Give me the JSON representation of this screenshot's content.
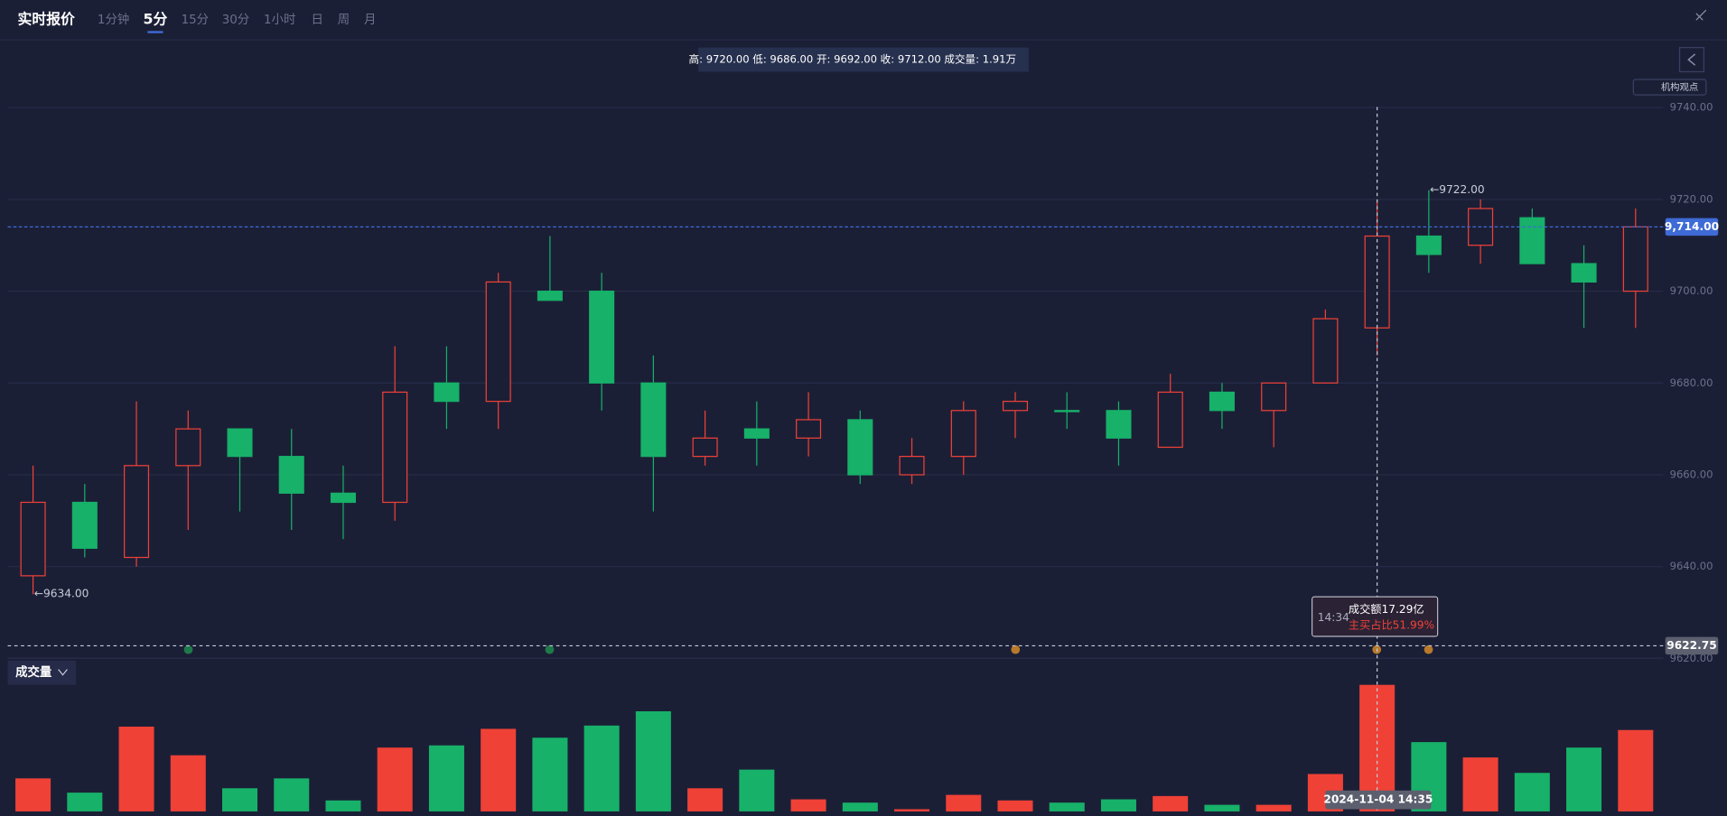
{
  "header": {
    "title": "实时报价",
    "tabs": [
      "1分钟",
      "5分",
      "15分",
      "30分",
      "1小时",
      "日",
      "周",
      "月"
    ],
    "active_tab": 1
  },
  "info_bar": "高: 9720.00 低: 9686.00 开: 9692.00 收: 9712.00 成交量: 1.91万",
  "badge": "机构观点",
  "volume_selector": "成交量",
  "chart_data": {
    "type": "candlestick",
    "open": [
      9638,
      9654,
      9642,
      9662,
      9670,
      9664,
      9656,
      9654,
      9680,
      9676,
      9700,
      9700,
      9680,
      9664,
      9670,
      9668,
      9672,
      9660,
      9664,
      9674,
      9674,
      9674,
      9666,
      9678,
      9674,
      9680,
      9692,
      9712,
      9710,
      9716,
      9706,
      9700
    ],
    "high": [
      9662,
      9658,
      9676,
      9674,
      9670,
      9670,
      9662,
      9688,
      9688,
      9704,
      9712,
      9704,
      9686,
      9674,
      9676,
      9678,
      9674,
      9668,
      9676,
      9678,
      9678,
      9676,
      9682,
      9680,
      9680,
      9696,
      9720,
      9722,
      9720,
      9718,
      9710,
      9718
    ],
    "low": [
      9634,
      9642,
      9640,
      9648,
      9652,
      9648,
      9646,
      9650,
      9670,
      9670,
      9698,
      9674,
      9652,
      9662,
      9662,
      9664,
      9658,
      9658,
      9660,
      9668,
      9670,
      9662,
      9666,
      9670,
      9666,
      9680,
      9686,
      9704,
      9706,
      9706,
      9692,
      9692
    ],
    "close": [
      9654,
      9644,
      9662,
      9670,
      9664,
      9656,
      9654,
      9678,
      9676,
      9702,
      9698,
      9680,
      9664,
      9668,
      9668,
      9672,
      9660,
      9664,
      9674,
      9676,
      9674,
      9668,
      9678,
      9674,
      9680,
      9694,
      9712,
      9708,
      9718,
      9706,
      9702,
      9714
    ],
    "up_color": "#ef4136",
    "down_color": "#17b169",
    "ylim": [
      9620,
      9749
    ],
    "yticks": [
      {
        "value": 9740,
        "label": "9740.00"
      },
      {
        "value": 9720,
        "label": "9720.00"
      },
      {
        "value": 9700,
        "label": "9700.00"
      },
      {
        "value": 9680,
        "label": "9680.00"
      },
      {
        "value": 9660,
        "label": "9660.00"
      },
      {
        "value": 9640,
        "label": "9640.00"
      },
      {
        "value": 9620,
        "label": "9620.00"
      }
    ],
    "grid": true,
    "annotations": [
      {
        "index": 27,
        "text": "←9722.00"
      },
      {
        "index": 0,
        "text": "←9634.00"
      }
    ],
    "last_price": {
      "value": 9714,
      "label": "9,714.00"
    },
    "crosshair": {
      "index": 26,
      "price": 9622.75,
      "date": "2024-11-04 14:35",
      "tooltip": {
        "time": "14:34",
        "amount": "成交额17.29亿",
        "buy_ratio": "主买占比51.99%"
      }
    },
    "volume": {
      "values": [
        4.51,
        2.56,
        11.58,
        7.67,
        3.16,
        4.51,
        1.5,
        8.72,
        9.02,
        11.28,
        10.07,
        11.73,
        13.68,
        3.16,
        5.71,
        1.65,
        1.2,
        0.3,
        2.26,
        1.5,
        1.2,
        1.65,
        2.1,
        0.9,
        0.9,
        5.11,
        17.29,
        9.47,
        7.37,
        5.26,
        8.72,
        11.12
      ],
      "ylim": [
        0,
        19.1
      ]
    }
  }
}
